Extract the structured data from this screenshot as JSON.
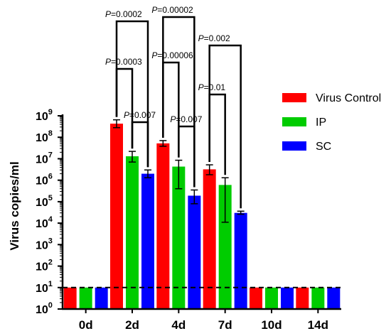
{
  "chart_data": {
    "type": "bar",
    "title": "",
    "ylabel": "Virus copies/ml",
    "xlabel": "",
    "yscale": "log",
    "ylim": [
      1,
      1000000000
    ],
    "yticks": [
      1,
      10,
      100,
      1000,
      10000,
      100000,
      1000000,
      10000000,
      100000000,
      1000000000
    ],
    "ytick_labels": [
      {
        "base": "10",
        "exp": "0"
      },
      {
        "base": "10",
        "exp": "1"
      },
      {
        "base": "10",
        "exp": "2"
      },
      {
        "base": "10",
        "exp": "3"
      },
      {
        "base": "10",
        "exp": "4"
      },
      {
        "base": "10",
        "exp": "5"
      },
      {
        "base": "10",
        "exp": "6"
      },
      {
        "base": "10",
        "exp": "7"
      },
      {
        "base": "10",
        "exp": "8"
      },
      {
        "base": "10",
        "exp": "9"
      }
    ],
    "categories": [
      "0d",
      "2d",
      "4d",
      "7d",
      "10d",
      "14d"
    ],
    "detection_limit": 10,
    "legend_position": "right",
    "series": [
      {
        "name": "Virus Control",
        "color": "#ff0000",
        "values": [
          10,
          430000000,
          52000000,
          3200000,
          10,
          10
        ],
        "error_low": [
          null,
          280000000,
          38000000,
          1800000,
          null,
          null
        ],
        "error_high": [
          null,
          650000000,
          70000000,
          5200000,
          null,
          null
        ]
      },
      {
        "name": "IP",
        "color": "#00cc00",
        "values": [
          10,
          13000000,
          4300000,
          600000,
          10,
          10
        ],
        "error_low": [
          null,
          7000000,
          400000,
          11000,
          null,
          null
        ],
        "error_high": [
          null,
          22000000,
          8500000,
          1300000,
          null,
          null
        ]
      },
      {
        "name": "SC",
        "color": "#0000ff",
        "values": [
          10,
          2000000,
          190000,
          30000,
          10,
          10
        ],
        "error_low": [
          null,
          1300000,
          80000,
          26000,
          null,
          null
        ],
        "error_high": [
          null,
          3000000,
          350000,
          36000,
          null,
          null
        ]
      }
    ],
    "annotations": [
      {
        "category": 1,
        "pair": [
          0,
          2
        ],
        "label": "=0.0002",
        "prefix": "P"
      },
      {
        "category": 1,
        "pair": [
          0,
          1
        ],
        "label": "=0.0003",
        "prefix": "P"
      },
      {
        "category": 1,
        "pair": [
          1,
          2
        ],
        "label": "=0.007",
        "prefix": "P"
      },
      {
        "category": 2,
        "pair": [
          0,
          2
        ],
        "label": "=0.00002",
        "prefix": "P"
      },
      {
        "category": 2,
        "pair": [
          0,
          1
        ],
        "label": "=0.00006",
        "prefix": "P"
      },
      {
        "category": 2,
        "pair": [
          1,
          2
        ],
        "label": "=0.007",
        "prefix": "P"
      },
      {
        "category": 3,
        "pair": [
          0,
          2
        ],
        "label": "=0.002",
        "prefix": "P"
      },
      {
        "category": 3,
        "pair": [
          0,
          1
        ],
        "label": "=0.01",
        "prefix": "P"
      }
    ]
  }
}
